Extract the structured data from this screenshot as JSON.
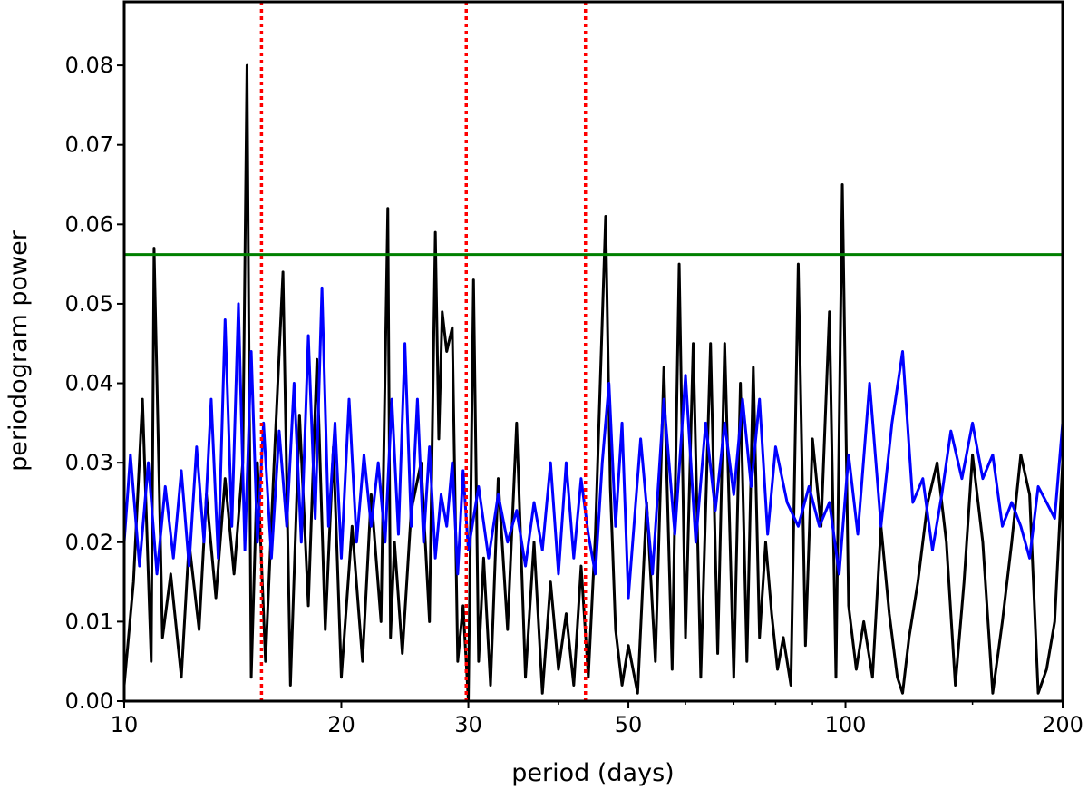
{
  "chart_data": {
    "type": "line",
    "title": "",
    "xlabel": "period (days)",
    "ylabel": "periodogram power",
    "xscale": "log",
    "xlim": [
      10,
      200
    ],
    "ylim": [
      0,
      0.088
    ],
    "grid": false,
    "legend": "none",
    "x_ticks": [
      {
        "value": 10,
        "label": "10"
      },
      {
        "value": 20,
        "label": "20"
      },
      {
        "value": 30,
        "label": "30"
      },
      {
        "value": 50,
        "label": "50"
      },
      {
        "value": 100,
        "label": "100"
      },
      {
        "value": 200,
        "label": "200"
      }
    ],
    "y_ticks": [
      {
        "value": 0.0,
        "label": "0.00"
      },
      {
        "value": 0.01,
        "label": "0.01"
      },
      {
        "value": 0.02,
        "label": "0.02"
      },
      {
        "value": 0.03,
        "label": "0.03"
      },
      {
        "value": 0.04,
        "label": "0.04"
      },
      {
        "value": 0.05,
        "label": "0.05"
      },
      {
        "value": 0.06,
        "label": "0.06"
      },
      {
        "value": 0.07,
        "label": "0.07"
      },
      {
        "value": 0.08,
        "label": "0.08"
      }
    ],
    "threshold": {
      "y": 0.0562,
      "color": "#008000"
    },
    "vlines": [
      {
        "x": 15.5,
        "color": "#ff0000"
      },
      {
        "x": 29.8,
        "color": "#ff0000"
      },
      {
        "x": 43.6,
        "color": "#ff0000"
      }
    ],
    "series": [
      {
        "color": "#000000",
        "x": [
          10.0,
          10.3,
          10.6,
          10.9,
          11.0,
          11.3,
          11.6,
          12.0,
          12.3,
          12.7,
          13.0,
          13.4,
          13.8,
          14.2,
          14.6,
          14.8,
          15.0,
          15.3,
          15.7,
          16.1,
          16.6,
          17.0,
          17.5,
          18.0,
          18.5,
          19.0,
          19.5,
          20.0,
          20.7,
          21.4,
          22.0,
          22.7,
          23.2,
          23.4,
          23.7,
          24.3,
          25.0,
          25.8,
          26.5,
          27.0,
          27.3,
          27.6,
          28.0,
          28.5,
          29.0,
          29.5,
          30.0,
          30.5,
          31.0,
          31.5,
          32.2,
          33.0,
          34.0,
          35.0,
          36.0,
          37.0,
          38.0,
          39.0,
          40.0,
          41.0,
          42.0,
          43.0,
          44.0,
          45.0,
          46.5,
          47.2,
          48.0,
          49.0,
          50.0,
          51.5,
          53.0,
          54.5,
          56.0,
          57.5,
          58.8,
          60.0,
          61.5,
          63.0,
          65.0,
          66.5,
          68.0,
          70.0,
          71.5,
          73.0,
          74.5,
          76.0,
          77.5,
          79.0,
          80.5,
          82.0,
          84.0,
          86.0,
          88.0,
          90.0,
          92.5,
          95.0,
          97.0,
          99.0,
          101.0,
          103.5,
          106.0,
          109.0,
          112.0,
          115.0,
          118.0,
          120.0,
          122.5,
          126.0,
          130.0,
          134.0,
          138.0,
          142.0,
          146.0,
          150.0,
          155.0,
          160.0,
          165.0,
          170.0,
          175.0,
          180.0,
          185.0,
          190.0,
          195.0,
          200.0
        ],
        "y": [
          0.002,
          0.015,
          0.038,
          0.005,
          0.057,
          0.008,
          0.016,
          0.003,
          0.02,
          0.009,
          0.026,
          0.013,
          0.028,
          0.016,
          0.03,
          0.08,
          0.003,
          0.03,
          0.005,
          0.028,
          0.054,
          0.002,
          0.036,
          0.012,
          0.043,
          0.009,
          0.032,
          0.003,
          0.022,
          0.005,
          0.026,
          0.01,
          0.062,
          0.008,
          0.02,
          0.006,
          0.024,
          0.03,
          0.01,
          0.059,
          0.033,
          0.049,
          0.044,
          0.047,
          0.005,
          0.012,
          0.0,
          0.053,
          0.005,
          0.018,
          0.002,
          0.028,
          0.009,
          0.035,
          0.003,
          0.02,
          0.001,
          0.015,
          0.004,
          0.011,
          0.002,
          0.017,
          0.003,
          0.021,
          0.061,
          0.027,
          0.009,
          0.002,
          0.007,
          0.001,
          0.025,
          0.005,
          0.042,
          0.004,
          0.055,
          0.008,
          0.045,
          0.003,
          0.045,
          0.006,
          0.045,
          0.003,
          0.04,
          0.005,
          0.042,
          0.008,
          0.02,
          0.011,
          0.004,
          0.008,
          0.002,
          0.055,
          0.007,
          0.033,
          0.022,
          0.049,
          0.003,
          0.065,
          0.012,
          0.004,
          0.01,
          0.003,
          0.022,
          0.011,
          0.003,
          0.001,
          0.008,
          0.015,
          0.025,
          0.03,
          0.02,
          0.002,
          0.015,
          0.031,
          0.02,
          0.001,
          0.01,
          0.02,
          0.031,
          0.026,
          0.001,
          0.004,
          0.01,
          0.03
        ]
      },
      {
        "color": "#0000ff",
        "x": [
          10.0,
          10.2,
          10.5,
          10.8,
          11.1,
          11.4,
          11.7,
          12.0,
          12.3,
          12.6,
          12.9,
          13.2,
          13.5,
          13.8,
          14.1,
          14.4,
          14.7,
          15.0,
          15.3,
          15.6,
          16.0,
          16.4,
          16.8,
          17.2,
          17.6,
          18.0,
          18.4,
          18.8,
          19.2,
          19.6,
          20.0,
          20.5,
          21.0,
          21.5,
          22.0,
          22.5,
          23.0,
          23.5,
          24.0,
          24.5,
          25.0,
          25.5,
          26.0,
          26.5,
          27.0,
          27.5,
          28.0,
          28.5,
          29.0,
          29.5,
          30.0,
          31.0,
          32.0,
          33.0,
          34.0,
          35.0,
          36.0,
          37.0,
          38.0,
          39.0,
          40.0,
          41.0,
          42.0,
          43.0,
          44.0,
          45.0,
          46.0,
          47.0,
          48.0,
          49.0,
          50.0,
          52.0,
          54.0,
          56.0,
          58.0,
          60.0,
          62.0,
          64.0,
          66.0,
          68.0,
          70.0,
          72.0,
          74.0,
          76.0,
          78.0,
          80.0,
          83.0,
          86.0,
          89.0,
          92.0,
          95.0,
          98.0,
          101.0,
          104.0,
          108.0,
          112.0,
          116.0,
          120.0,
          124.0,
          128.0,
          132.0,
          136.0,
          140.0,
          145.0,
          150.0,
          155.0,
          160.0,
          165.0,
          170.0,
          175.0,
          180.0,
          185.0,
          190.0,
          195.0,
          200.0
        ],
        "y": [
          0.02,
          0.031,
          0.017,
          0.03,
          0.016,
          0.027,
          0.018,
          0.029,
          0.017,
          0.032,
          0.02,
          0.038,
          0.018,
          0.048,
          0.022,
          0.05,
          0.019,
          0.044,
          0.02,
          0.035,
          0.018,
          0.034,
          0.022,
          0.04,
          0.02,
          0.046,
          0.023,
          0.052,
          0.022,
          0.035,
          0.018,
          0.038,
          0.02,
          0.031,
          0.022,
          0.03,
          0.02,
          0.038,
          0.021,
          0.045,
          0.022,
          0.038,
          0.02,
          0.032,
          0.018,
          0.026,
          0.022,
          0.03,
          0.016,
          0.029,
          0.019,
          0.027,
          0.018,
          0.026,
          0.02,
          0.024,
          0.017,
          0.025,
          0.019,
          0.03,
          0.016,
          0.03,
          0.018,
          0.028,
          0.021,
          0.016,
          0.03,
          0.04,
          0.022,
          0.035,
          0.013,
          0.033,
          0.016,
          0.038,
          0.021,
          0.041,
          0.02,
          0.035,
          0.024,
          0.035,
          0.026,
          0.038,
          0.027,
          0.038,
          0.021,
          0.032,
          0.025,
          0.022,
          0.027,
          0.022,
          0.025,
          0.016,
          0.031,
          0.021,
          0.04,
          0.022,
          0.035,
          0.044,
          0.025,
          0.028,
          0.019,
          0.026,
          0.034,
          0.028,
          0.035,
          0.028,
          0.031,
          0.022,
          0.025,
          0.022,
          0.018,
          0.027,
          0.025,
          0.023,
          0.035
        ]
      }
    ]
  }
}
